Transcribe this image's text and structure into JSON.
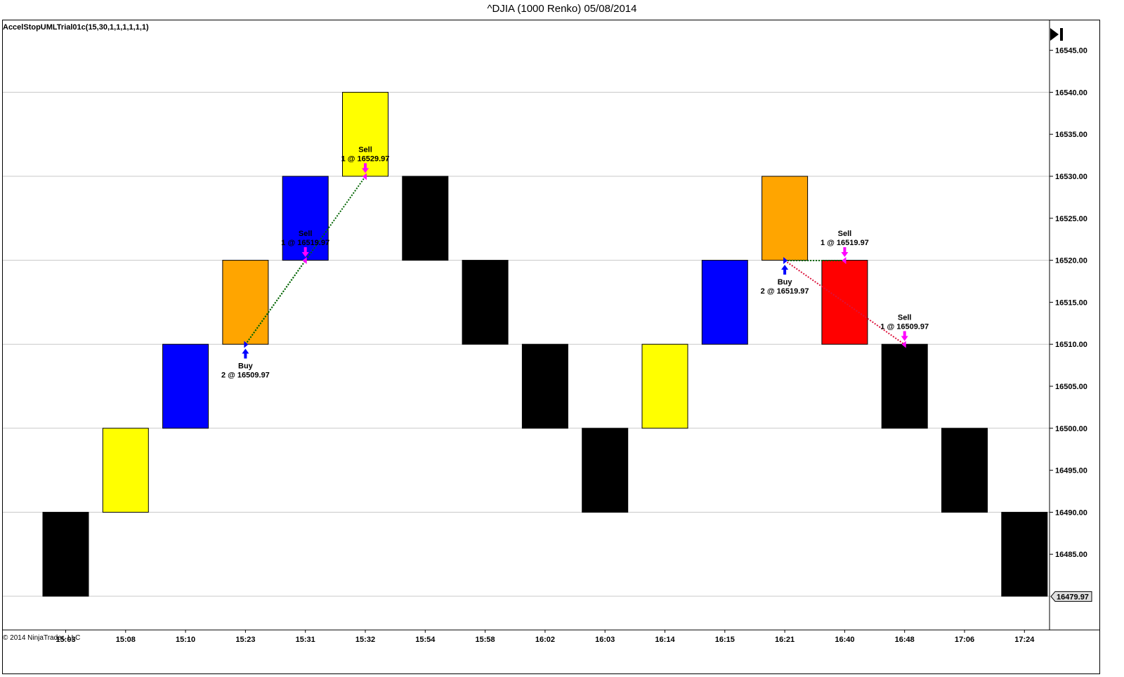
{
  "header": {
    "title": "^DJIA (1000 Renko)  05/08/2014",
    "strategy_label": "AccelStopUMLTrial01c(15,30,1,1,1,1,1,1)",
    "copyright": "© 2014 NinjaTrader, LLC"
  },
  "controls": {
    "end_icon": "skip-to-end-icon"
  },
  "chart_data": {
    "type": "renko",
    "ylim": [
      16475.0,
      16548.0
    ],
    "y_ticks": [
      "16545.00",
      "16540.00",
      "16535.00",
      "16530.00",
      "16525.00",
      "16520.00",
      "16515.00",
      "16510.00",
      "16505.00",
      "16500.00",
      "16495.00",
      "16490.00",
      "16485.00"
    ],
    "grid_lines": [
      16540.0,
      16530.0,
      16520.0,
      16510.0,
      16500.0,
      16490.0,
      16480.0
    ],
    "last_price_label": "16479.97",
    "last_price": 16479.97,
    "categories": [
      "15:03",
      "15:08",
      "15:10",
      "15:23",
      "15:31",
      "15:32",
      "15:54",
      "15:58",
      "16:02",
      "16:03",
      "16:14",
      "16:15",
      "16:21",
      "16:40",
      "16:48",
      "17:06",
      "17:24"
    ],
    "bricks": [
      {
        "open": 16480,
        "close": 16490,
        "color": "#000000"
      },
      {
        "open": 16490,
        "close": 16500,
        "color": "#FFFF00"
      },
      {
        "open": 16500,
        "close": 16510,
        "color": "#0000FF"
      },
      {
        "open": 16510,
        "close": 16520,
        "color": "#FFA500"
      },
      {
        "open": 16520,
        "close": 16530,
        "color": "#0000FF"
      },
      {
        "open": 16530,
        "close": 16540,
        "color": "#FFFF00"
      },
      {
        "open": 16530,
        "close": 16520,
        "color": "#000000"
      },
      {
        "open": 16520,
        "close": 16510,
        "color": "#000000"
      },
      {
        "open": 16510,
        "close": 16500,
        "color": "#000000"
      },
      {
        "open": 16500,
        "close": 16490,
        "color": "#000000"
      },
      {
        "open": 16500,
        "close": 16510,
        "color": "#FFFF00"
      },
      {
        "open": 16510,
        "close": 16520,
        "color": "#0000FF"
      },
      {
        "open": 16520,
        "close": 16530,
        "color": "#FFA500"
      },
      {
        "open": 16520,
        "close": 16510,
        "color": "#FF0000"
      },
      {
        "open": 16510,
        "close": 16500,
        "color": "#000000"
      },
      {
        "open": 16500,
        "close": 16490,
        "color": "#000000"
      },
      {
        "open": 16490,
        "close": 16480,
        "color": "#000000"
      }
    ],
    "trades": [
      {
        "type": "Buy",
        "index": 3,
        "price": 16509.97,
        "line1": "Buy",
        "line2": "2 @ 16509.97"
      },
      {
        "type": "Sell",
        "index": 4,
        "price": 16519.97,
        "line1": "Sell",
        "line2": "1 @ 16519.97"
      },
      {
        "type": "Sell",
        "index": 5,
        "price": 16529.97,
        "line1": "Sell",
        "line2": "1 @ 16529.97"
      },
      {
        "type": "Buy",
        "index": 12,
        "price": 16519.97,
        "line1": "Buy",
        "line2": "2 @ 16519.97"
      },
      {
        "type": "Sell",
        "index": 13,
        "price": 16519.97,
        "line1": "Sell",
        "line2": "1 @ 16519.97"
      },
      {
        "type": "Sell",
        "index": 14,
        "price": 16509.97,
        "line1": "Sell",
        "line2": "1 @ 16509.97"
      }
    ],
    "trade_lines": [
      {
        "from": 0,
        "to": 1,
        "color": "#006400"
      },
      {
        "from": 0,
        "to": 2,
        "color": "#006400"
      },
      {
        "from": 3,
        "to": 4,
        "color": "#006400"
      },
      {
        "from": 3,
        "to": 5,
        "color": "#DC143C"
      }
    ],
    "colors": {
      "buy": "#0000FF",
      "sell": "#FF00FF",
      "grid": "#C8C8C8",
      "text": "#000000"
    }
  }
}
